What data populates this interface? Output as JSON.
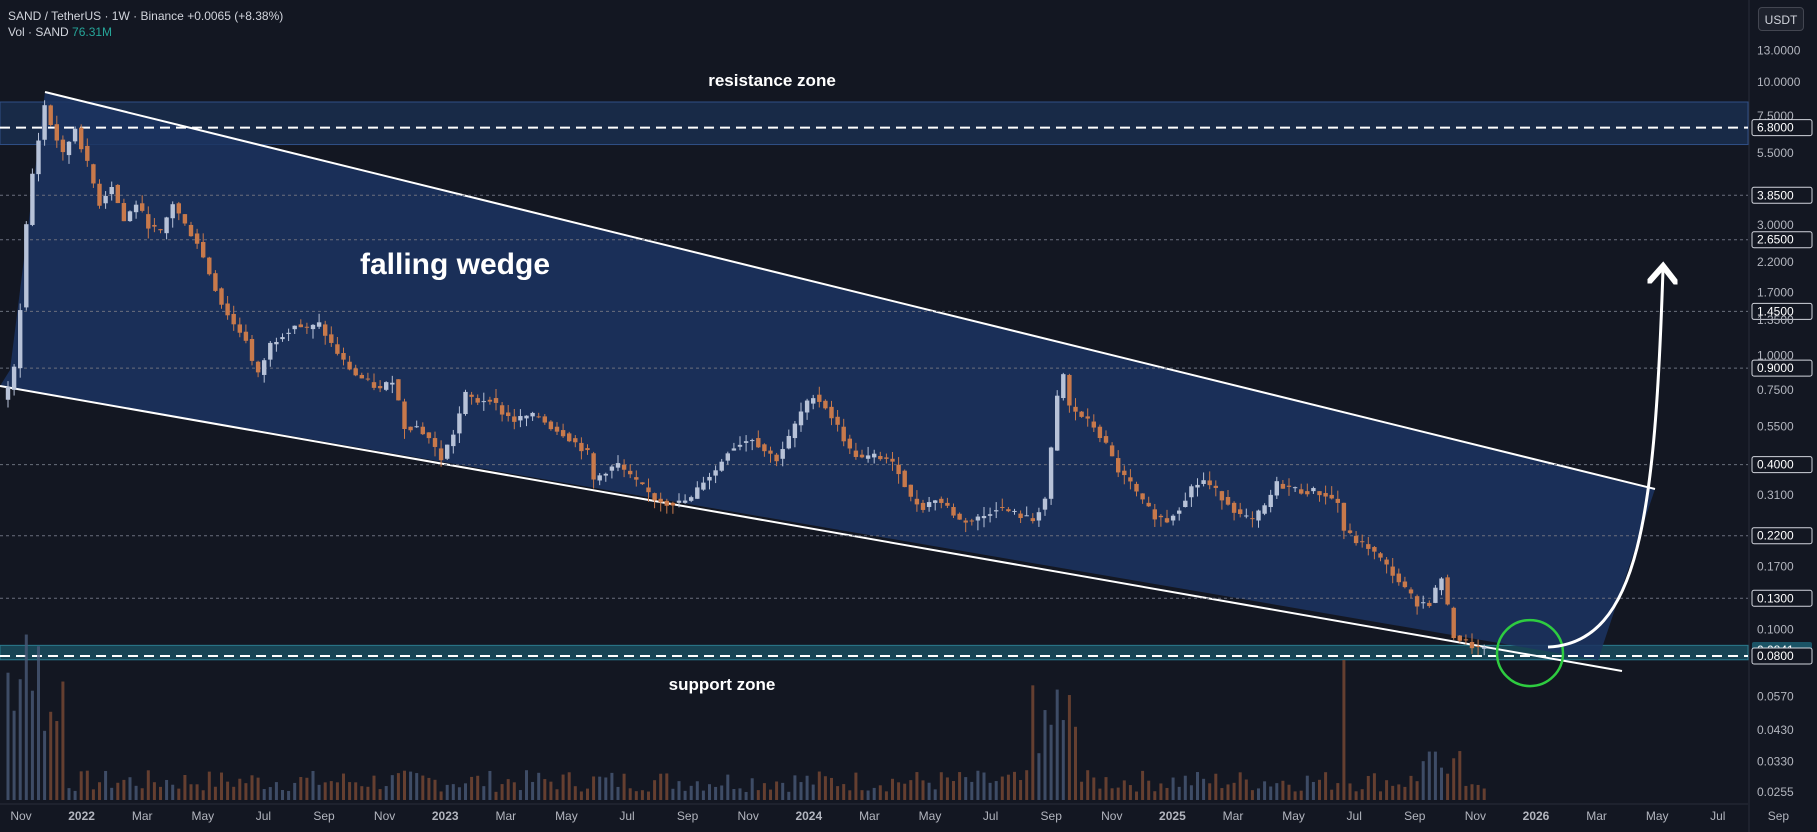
{
  "header": {
    "symbol": "SAND / TetherUS · 1W · Binance",
    "change": "+0.0065 (+8.38%)",
    "vol_label": "Vol · SAND",
    "vol_value": "76.31M"
  },
  "currency_button": "USDT",
  "colors": {
    "background": "#131722",
    "up_candle": "#b7c2d8",
    "down_candle": "#c8794b",
    "wedge_fill": "#1c3461",
    "zone_fill": "#1d3a66",
    "support_fill": "#1b5466",
    "text": "#d1d4dc",
    "circle": "#2ecc40"
  },
  "chart_data": {
    "type": "candlestick",
    "title": "SAND / TetherUS · 1W · Binance",
    "yscale": "log",
    "ylim": [
      0.024,
      14
    ],
    "price_axis_labels": [
      "13.0000",
      "10.0000",
      "7.5000",
      "6.8000",
      "5.5000",
      "3.8500",
      "3.0000",
      "2.6500",
      "2.2000",
      "1.7000",
      "1.4500",
      "1.3500",
      "1.0000",
      "0.9000",
      "0.7500",
      "0.5500",
      "0.4000",
      "0.3100",
      "0.2200",
      "0.1700",
      "0.1300",
      "0.1000",
      "0.0841",
      "0.0800",
      "0.0570",
      "0.0430",
      "0.0330",
      "0.0255"
    ],
    "highlighted_labels": [
      "6.8000",
      "3.8500",
      "2.6500",
      "1.4500",
      "0.9000",
      "0.4000",
      "0.2200",
      "0.1300",
      "0.0841",
      "0.0800"
    ],
    "horizontal_levels": [
      6.8,
      3.85,
      2.65,
      1.45,
      0.9,
      0.4,
      0.22,
      0.13,
      0.08
    ],
    "time_axis_labels": [
      "Nov",
      "2022",
      "Mar",
      "May",
      "Jul",
      "Sep",
      "Nov",
      "2023",
      "Mar",
      "May",
      "Jul",
      "Sep",
      "Nov",
      "2024",
      "Mar",
      "May",
      "Jul",
      "Sep",
      "Nov",
      "2025",
      "Mar",
      "May",
      "Jul",
      "Sep",
      "Nov",
      "2026",
      "Mar",
      "May",
      "Jul",
      "Sep"
    ],
    "price_path": [
      [
        0,
        0.75
      ],
      [
        1,
        0.9
      ],
      [
        2,
        1.5
      ],
      [
        3,
        3.0
      ],
      [
        4,
        4.6
      ],
      [
        6,
        8.2
      ],
      [
        7,
        7.0
      ],
      [
        9,
        5.4
      ],
      [
        11,
        6.8
      ],
      [
        13,
        5.0
      ],
      [
        15,
        3.6
      ],
      [
        17,
        4.2
      ],
      [
        19,
        3.1
      ],
      [
        21,
        3.6
      ],
      [
        23,
        3.0
      ],
      [
        25,
        2.8
      ],
      [
        27,
        3.6
      ],
      [
        29,
        3.0
      ],
      [
        31,
        2.6
      ],
      [
        33,
        2.0
      ],
      [
        35,
        1.55
      ],
      [
        37,
        1.3
      ],
      [
        39,
        1.15
      ],
      [
        40,
        0.95
      ],
      [
        41,
        0.85
      ],
      [
        43,
        1.1
      ],
      [
        45,
        1.2
      ],
      [
        47,
        1.3
      ],
      [
        49,
        1.25
      ],
      [
        51,
        1.3
      ],
      [
        53,
        1.1
      ],
      [
        55,
        0.95
      ],
      [
        57,
        0.85
      ],
      [
        59,
        0.8
      ],
      [
        61,
        0.75
      ],
      [
        63,
        0.82
      ],
      [
        64,
        0.68
      ],
      [
        65,
        0.55
      ],
      [
        67,
        0.55
      ],
      [
        69,
        0.5
      ],
      [
        71,
        0.42
      ],
      [
        73,
        0.52
      ],
      [
        75,
        0.72
      ],
      [
        77,
        0.68
      ],
      [
        79,
        0.7
      ],
      [
        81,
        0.62
      ],
      [
        83,
        0.58
      ],
      [
        85,
        0.6
      ],
      [
        87,
        0.6
      ],
      [
        89,
        0.55
      ],
      [
        91,
        0.52
      ],
      [
        93,
        0.48
      ],
      [
        95,
        0.44
      ],
      [
        96,
        0.35
      ],
      [
        98,
        0.38
      ],
      [
        100,
        0.4
      ],
      [
        102,
        0.36
      ],
      [
        104,
        0.33
      ],
      [
        106,
        0.3
      ],
      [
        108,
        0.29
      ],
      [
        110,
        0.29
      ],
      [
        112,
        0.3
      ],
      [
        114,
        0.35
      ],
      [
        116,
        0.38
      ],
      [
        118,
        0.45
      ],
      [
        120,
        0.48
      ],
      [
        122,
        0.5
      ],
      [
        124,
        0.45
      ],
      [
        126,
        0.42
      ],
      [
        128,
        0.5
      ],
      [
        130,
        0.62
      ],
      [
        132,
        0.72
      ],
      [
        134,
        0.65
      ],
      [
        136,
        0.55
      ],
      [
        138,
        0.45
      ],
      [
        140,
        0.42
      ],
      [
        142,
        0.43
      ],
      [
        144,
        0.42
      ],
      [
        146,
        0.38
      ],
      [
        148,
        0.3
      ],
      [
        150,
        0.28
      ],
      [
        152,
        0.3
      ],
      [
        154,
        0.28
      ],
      [
        156,
        0.25
      ],
      [
        158,
        0.25
      ],
      [
        160,
        0.26
      ],
      [
        162,
        0.28
      ],
      [
        164,
        0.27
      ],
      [
        166,
        0.26
      ],
      [
        168,
        0.25
      ],
      [
        170,
        0.3
      ],
      [
        171,
        0.45
      ],
      [
        172,
        0.7
      ],
      [
        173,
        0.85
      ],
      [
        174,
        0.65
      ],
      [
        176,
        0.6
      ],
      [
        178,
        0.55
      ],
      [
        180,
        0.47
      ],
      [
        182,
        0.38
      ],
      [
        184,
        0.34
      ],
      [
        186,
        0.29
      ],
      [
        188,
        0.26
      ],
      [
        190,
        0.25
      ],
      [
        192,
        0.28
      ],
      [
        194,
        0.33
      ],
      [
        196,
        0.35
      ],
      [
        198,
        0.32
      ],
      [
        200,
        0.29
      ],
      [
        202,
        0.26
      ],
      [
        204,
        0.25
      ],
      [
        206,
        0.28
      ],
      [
        208,
        0.34
      ],
      [
        210,
        0.33
      ],
      [
        212,
        0.32
      ],
      [
        214,
        0.32
      ],
      [
        216,
        0.31
      ],
      [
        218,
        0.29
      ],
      [
        219,
        0.23
      ],
      [
        221,
        0.21
      ],
      [
        223,
        0.2
      ],
      [
        225,
        0.18
      ],
      [
        227,
        0.16
      ],
      [
        229,
        0.14
      ],
      [
        231,
        0.125
      ],
      [
        233,
        0.125
      ],
      [
        235,
        0.155
      ],
      [
        236,
        0.12
      ],
      [
        237,
        0.095
      ],
      [
        238,
        0.092
      ],
      [
        239,
        0.09
      ],
      [
        240,
        0.087
      ],
      [
        241,
        0.085
      ],
      [
        242,
        0.084
      ]
    ],
    "annotations": {
      "pattern_label": "falling wedge",
      "resistance_label": "resistance zone",
      "support_label": "support zone",
      "resistance_zone": [
        5.9,
        7.5
      ],
      "support_zone": [
        0.0775,
        0.0875
      ],
      "projection": {
        "from": 0.085,
        "to": 2.45
      }
    }
  }
}
